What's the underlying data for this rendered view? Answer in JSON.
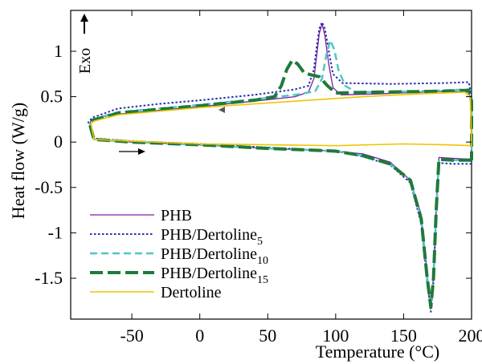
{
  "chart_data": {
    "type": "line",
    "title": "",
    "xlabel": "Temperature (°C)",
    "ylabel": "Heat flow (W/g)",
    "xlim": [
      -95,
      200
    ],
    "ylim": [
      -1.95,
      1.45
    ],
    "x_ticks": [
      -50,
      0,
      50,
      100,
      150,
      200
    ],
    "y_ticks": [
      1,
      0.5,
      0,
      -0.5,
      -1,
      -1.5
    ],
    "x_tick_labels": [
      "-50",
      "0",
      "50",
      "100",
      "150",
      "200"
    ],
    "y_tick_labels": [
      "1",
      "0.5",
      "0",
      "-0.5",
      "-1",
      "-1.5"
    ],
    "grid": false,
    "legend_position": "bottom-left",
    "annotations": {
      "exo_label": "Exo"
    },
    "series": [
      {
        "name": "PHB",
        "legend_base": "PHB",
        "legend_sub": "",
        "color": "#7b1fa2",
        "style": "solid",
        "width": 1.3,
        "points": [
          [
            200,
            -0.19
          ],
          [
            188,
            -0.18
          ],
          [
            176,
            -0.17
          ],
          [
            174,
            -0.7
          ],
          [
            172,
            -1.5
          ],
          [
            169.5,
            -1.82
          ],
          [
            167,
            -1.4
          ],
          [
            163,
            -0.8
          ],
          [
            155,
            -0.42
          ],
          [
            140,
            -0.22
          ],
          [
            120,
            -0.13
          ],
          [
            100,
            -0.1
          ],
          [
            50,
            -0.07
          ],
          [
            0,
            -0.03
          ],
          [
            -50,
            0.0
          ],
          [
            -78,
            0.03
          ],
          [
            -81,
            0.2
          ],
          [
            -80,
            0.24
          ],
          [
            -65,
            0.3
          ],
          [
            -30,
            0.35
          ],
          [
            0,
            0.39
          ],
          [
            40,
            0.45
          ],
          [
            70,
            0.5
          ],
          [
            80,
            0.55
          ],
          [
            84,
            0.7
          ],
          [
            86,
            0.95
          ],
          [
            88,
            1.2
          ],
          [
            90,
            1.3
          ],
          [
            92,
            1.18
          ],
          [
            95,
            0.85
          ],
          [
            98,
            0.6
          ],
          [
            104,
            0.52
          ],
          [
            130,
            0.53
          ],
          [
            180,
            0.56
          ],
          [
            198,
            0.55
          ],
          [
            200,
            0.4
          ],
          [
            200,
            -0.19
          ]
        ]
      },
      {
        "name": "PHB/Dertoline5",
        "legend_base": "PHB/Dertoline",
        "legend_sub": "5",
        "color": "#2732b0",
        "style": "dotted",
        "width": 2,
        "points": [
          [
            200,
            -0.24
          ],
          [
            186,
            -0.24
          ],
          [
            176,
            -0.23
          ],
          [
            174,
            -0.8
          ],
          [
            172,
            -1.55
          ],
          [
            170,
            -1.87
          ],
          [
            167,
            -1.5
          ],
          [
            163,
            -0.9
          ],
          [
            155,
            -0.45
          ],
          [
            140,
            -0.25
          ],
          [
            120,
            -0.16
          ],
          [
            100,
            -0.1
          ],
          [
            50,
            -0.06
          ],
          [
            0,
            -0.02
          ],
          [
            -50,
            0.01
          ],
          [
            -78,
            0.04
          ],
          [
            -82,
            0.22
          ],
          [
            -79,
            0.27
          ],
          [
            -60,
            0.37
          ],
          [
            -30,
            0.42
          ],
          [
            0,
            0.46
          ],
          [
            40,
            0.52
          ],
          [
            70,
            0.58
          ],
          [
            80,
            0.62
          ],
          [
            84,
            0.8
          ],
          [
            86,
            1.05
          ],
          [
            88,
            1.25
          ],
          [
            90,
            1.32
          ],
          [
            92,
            1.25
          ],
          [
            95,
            1.0
          ],
          [
            98,
            0.75
          ],
          [
            105,
            0.65
          ],
          [
            140,
            0.64
          ],
          [
            180,
            0.65
          ],
          [
            198,
            0.66
          ],
          [
            200,
            0.5
          ],
          [
            200,
            -0.24
          ]
        ]
      },
      {
        "name": "PHB/Dertoline10",
        "legend_base": "PHB/Dertoline",
        "legend_sub": "10",
        "color": "#4fc6c6",
        "style": "dashed",
        "width": 2.5,
        "points": [
          [
            200,
            -0.2
          ],
          [
            186,
            -0.2
          ],
          [
            176,
            -0.19
          ],
          [
            174,
            -0.75
          ],
          [
            172,
            -1.5
          ],
          [
            170,
            -1.8
          ],
          [
            167,
            -1.45
          ],
          [
            163,
            -0.85
          ],
          [
            155,
            -0.42
          ],
          [
            140,
            -0.24
          ],
          [
            120,
            -0.15
          ],
          [
            100,
            -0.1
          ],
          [
            50,
            -0.07
          ],
          [
            0,
            -0.03
          ],
          [
            -50,
            0.0
          ],
          [
            -78,
            0.03
          ],
          [
            -81,
            0.21
          ],
          [
            -79,
            0.25
          ],
          [
            -60,
            0.33
          ],
          [
            -30,
            0.37
          ],
          [
            0,
            0.41
          ],
          [
            40,
            0.47
          ],
          [
            70,
            0.52
          ],
          [
            85,
            0.56
          ],
          [
            90,
            0.7
          ],
          [
            93,
            0.95
          ],
          [
            96,
            1.12
          ],
          [
            99,
            1.02
          ],
          [
            102,
            0.8
          ],
          [
            107,
            0.62
          ],
          [
            115,
            0.55
          ],
          [
            140,
            0.55
          ],
          [
            180,
            0.57
          ],
          [
            198,
            0.58
          ],
          [
            200,
            0.45
          ],
          [
            200,
            -0.2
          ]
        ]
      },
      {
        "name": "PHB/Dertoline15",
        "legend_base": "PHB/Dertoline",
        "legend_sub": "15",
        "color": "#1f7a3a",
        "style": "dashed",
        "width": 4,
        "points": [
          [
            200,
            -0.2
          ],
          [
            186,
            -0.2
          ],
          [
            176,
            -0.19
          ],
          [
            174,
            -0.75
          ],
          [
            172,
            -1.5
          ],
          [
            170,
            -1.82
          ],
          [
            167,
            -1.45
          ],
          [
            163,
            -0.85
          ],
          [
            155,
            -0.42
          ],
          [
            140,
            -0.24
          ],
          [
            120,
            -0.15
          ],
          [
            100,
            -0.1
          ],
          [
            50,
            -0.07
          ],
          [
            0,
            -0.03
          ],
          [
            -50,
            0.0
          ],
          [
            -78,
            0.03
          ],
          [
            -81,
            0.2
          ],
          [
            -79,
            0.24
          ],
          [
            -60,
            0.32
          ],
          [
            -30,
            0.36
          ],
          [
            0,
            0.4
          ],
          [
            40,
            0.46
          ],
          [
            55,
            0.5
          ],
          [
            60,
            0.62
          ],
          [
            64,
            0.8
          ],
          [
            68,
            0.9
          ],
          [
            72,
            0.86
          ],
          [
            77,
            0.76
          ],
          [
            82,
            0.74
          ],
          [
            88,
            0.72
          ],
          [
            94,
            0.62
          ],
          [
            100,
            0.54
          ],
          [
            130,
            0.55
          ],
          [
            180,
            0.56
          ],
          [
            198,
            0.57
          ],
          [
            200,
            0.45
          ],
          [
            200,
            -0.2
          ]
        ]
      },
      {
        "name": "Dertoline",
        "legend_base": "Dertoline",
        "legend_sub": "",
        "color": "#f0c400",
        "style": "solid",
        "width": 1.6,
        "points": [
          [
            200,
            0.0
          ],
          [
            200,
            -0.04
          ],
          [
            180,
            -0.03
          ],
          [
            150,
            -0.02
          ],
          [
            100,
            -0.04
          ],
          [
            50,
            -0.03
          ],
          [
            0,
            -0.02
          ],
          [
            -50,
            0.01
          ],
          [
            -78,
            0.03
          ],
          [
            -80,
            0.2
          ],
          [
            -78,
            0.23
          ],
          [
            -60,
            0.3
          ],
          [
            -30,
            0.34
          ],
          [
            0,
            0.38
          ],
          [
            40,
            0.42
          ],
          [
            80,
            0.46
          ],
          [
            120,
            0.5
          ],
          [
            160,
            0.53
          ],
          [
            195,
            0.55
          ],
          [
            199,
            0.5
          ],
          [
            200,
            0.0
          ]
        ]
      }
    ]
  }
}
